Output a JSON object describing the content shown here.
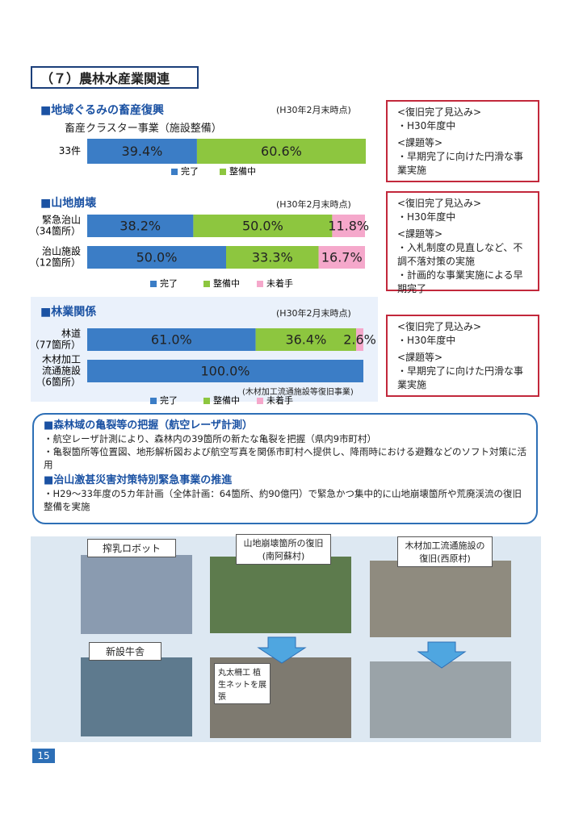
{
  "header": {
    "title": "（７）農林水産業関連"
  },
  "charts": [
    {
      "title": "■地域ぐるみの畜産復興",
      "date": "(H30年2月末時点)",
      "subtitle": "畜産クラスター事業（施設整備）",
      "categories": [
        [
          "33件"
        ]
      ],
      "series": [
        {
          "name": "完了",
          "color": "#3b7dc6",
          "values": [
            39.4
          ],
          "value_labels": [
            "39.4%"
          ]
        },
        {
          "name": "整備中",
          "color": "#8dc63f",
          "values": [
            60.6
          ],
          "value_labels": [
            "60.6%"
          ]
        }
      ],
      "xlim": [
        0,
        100
      ]
    },
    {
      "title": "■山地崩壊",
      "date": "(H30年2月末時点)",
      "categories": [
        [
          "緊急治山",
          "（34箇所）"
        ],
        [
          "治山施設",
          "（12箇所）"
        ]
      ],
      "series": [
        {
          "name": "完了",
          "color": "#3b7dc6",
          "values": [
            38.2,
            50.0
          ],
          "value_labels": [
            "38.2%",
            "50.0%"
          ]
        },
        {
          "name": "整備中",
          "color": "#8dc63f",
          "values": [
            50.0,
            33.3
          ],
          "value_labels": [
            "50.0%",
            "33.3%"
          ]
        },
        {
          "name": "未着手",
          "color": "#f5a8cb",
          "values": [
            11.8,
            16.7
          ],
          "value_labels": [
            "11.8%",
            "16.7%"
          ]
        }
      ],
      "xlim": [
        0,
        100
      ]
    },
    {
      "title": "■林業関係",
      "date": "(H30年2月末時点)",
      "note": "(木材加工流通施設等復旧事業)",
      "categories": [
        [
          "林道",
          "（77箇所）"
        ],
        [
          "木材加工",
          "流通施設",
          "（6箇所）"
        ]
      ],
      "series": [
        {
          "name": "完了",
          "color": "#3b7dc6",
          "values": [
            61.0,
            100.0
          ],
          "value_labels": [
            "61.0%",
            "100.0%"
          ]
        },
        {
          "name": "整備中",
          "color": "#8dc63f",
          "values": [
            36.4,
            null
          ],
          "value_labels": [
            "36.4%",
            null
          ]
        },
        {
          "name": "未着手",
          "color": "#f5a8cb",
          "values": [
            2.6,
            null
          ],
          "value_labels": [
            "2.6%",
            null
          ]
        }
      ],
      "xlim": [
        0,
        100
      ]
    }
  ],
  "boxes": [
    [
      "<復旧完了見込み>",
      "・H30年度中",
      "<課題等>",
      "・早期完了に向けた円滑な事業実施"
    ],
    [
      "<復旧完了見込み>",
      "・H30年度中",
      "<課題等>",
      "・入札制度の見直しなど、不調不落対策の実施",
      "・計画的な事業実施による早期完了"
    ],
    [
      "<復旧完了見込み>",
      "・H30年度中",
      "<課題等>",
      "・早期完了に向けた円滑な事業実施"
    ]
  ],
  "info": {
    "heading1": "■森林域の亀裂等の把握（航空レーザ計測）",
    "bullets1": [
      "・航空レーザ計測により、森林内の39箇所の新たな亀裂を把握（県内9市町村）",
      "・亀裂箇所等位置図、地形解析図および航空写真を関係市町村へ提供し、降雨時における避難などのソフト対策に活用"
    ],
    "heading2": "■治山激甚災害対策特別緊急事業の推進",
    "bullets2": [
      "・H29～33年度の5カ年計画（全体計画：64箇所、約90億円）で緊急かつ集中的に山地崩壊箇所や荒廃渓流の復旧整備を実施"
    ]
  },
  "photos": {
    "robot": "搾乳ロボット",
    "barn": "新設牛舎",
    "slope": "山地崩壊箇所の復旧(南阿蘇村)",
    "wood": "木材加工流通施設の復旧(西原村)",
    "net": "丸太柵工 植生ネットを展張"
  },
  "page_number": "15"
}
